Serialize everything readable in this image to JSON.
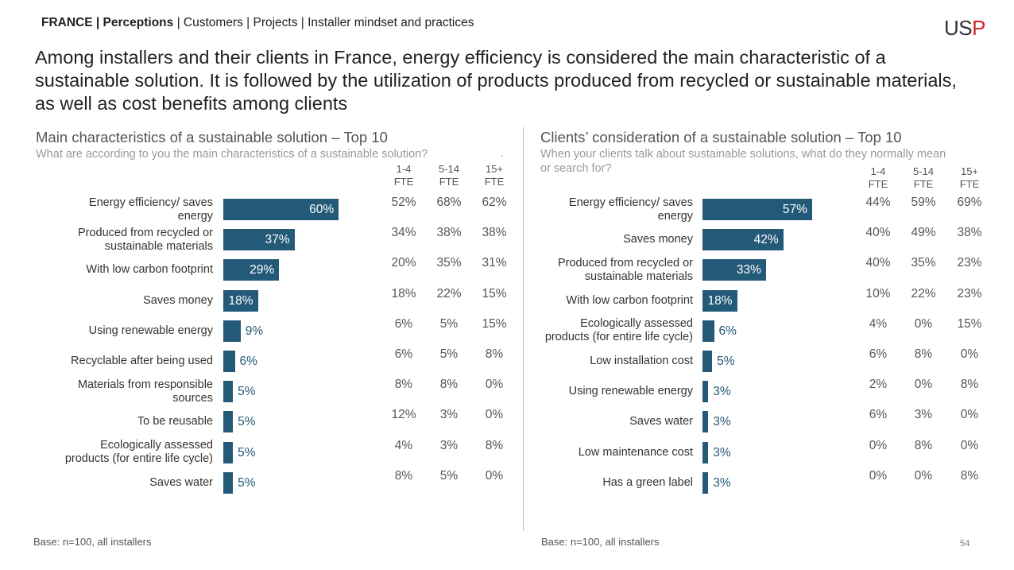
{
  "breadcrumb": {
    "country": "FRANCE",
    "sep1": " | ",
    "current": "Perceptions",
    "rest": " | Customers | Projects | Installer mindset and practices"
  },
  "logo": {
    "text_a": "US",
    "text_b": "P"
  },
  "headline": "Among installers and their clients in France, energy efficiency is considered the main characteristic of a sustainable solution. It is followed by the utilization of products produced from recycled or sustainable materials, as well as cost benefits among clients",
  "colors": {
    "bar": "#235a78"
  },
  "column_headers": [
    {
      "top": "1-4",
      "bottom": "FTE"
    },
    {
      "top": "5-14",
      "bottom": "FTE"
    },
    {
      "top": "15+",
      "bottom": "FTE"
    }
  ],
  "chart_data": [
    {
      "type": "bar",
      "title": "Main characteristics of a sustainable solution – Top 10",
      "subtitle": "What are according to you the main characteristics of a sustainable solution?",
      "categories": [
        "Energy efficiency/ saves energy",
        "Produced from recycled or sustainable materials",
        "With low carbon footprint",
        "Saves money",
        "Using renewable energy",
        "Recyclable after being used",
        "Materials from responsible sources",
        "To be reusable",
        "Ecologically assessed products (for entire life cycle)",
        "Saves water"
      ],
      "values": [
        60,
        37,
        29,
        18,
        9,
        6,
        5,
        5,
        5,
        5
      ],
      "unit": "%",
      "breakdown": [
        [
          "52%",
          "68%",
          "62%"
        ],
        [
          "34%",
          "38%",
          "38%"
        ],
        [
          "20%",
          "35%",
          "31%"
        ],
        [
          "18%",
          "22%",
          "15%"
        ],
        [
          "6%",
          "5%",
          "15%"
        ],
        [
          "6%",
          "5%",
          "8%"
        ],
        [
          "8%",
          "8%",
          "0%"
        ],
        [
          "12%",
          "3%",
          "0%"
        ],
        [
          "4%",
          "3%",
          "8%"
        ],
        [
          "8%",
          "5%",
          "0%"
        ]
      ],
      "base": "Base: n=100, all installers"
    },
    {
      "type": "bar",
      "title": "Clients’ consideration of a sustainable solution – Top 10",
      "subtitle": "When your clients talk about sustainable solutions, what do they normally mean or search for?",
      "categories": [
        "Energy efficiency/ saves energy",
        "Saves money",
        "Produced from recycled or sustainable materials",
        "With low carbon footprint",
        "Ecologically assessed products (for entire life cycle)",
        "Low installation cost",
        "Using renewable energy",
        "Saves water",
        "Low maintenance cost",
        "Has a green label"
      ],
      "values": [
        57,
        42,
        33,
        18,
        6,
        5,
        3,
        3,
        3,
        3
      ],
      "unit": "%",
      "breakdown": [
        [
          "44%",
          "59%",
          "69%"
        ],
        [
          "40%",
          "49%",
          "38%"
        ],
        [
          "40%",
          "35%",
          "23%"
        ],
        [
          "10%",
          "22%",
          "23%"
        ],
        [
          "4%",
          "0%",
          "15%"
        ],
        [
          "6%",
          "8%",
          "0%"
        ],
        [
          "2%",
          "0%",
          "8%"
        ],
        [
          "6%",
          "3%",
          "0%"
        ],
        [
          "0%",
          "8%",
          "0%"
        ],
        [
          "0%",
          "0%",
          "8%"
        ]
      ],
      "base": "Base: n=100, all installers"
    }
  ],
  "page_number": "54",
  "stray_mark": "."
}
